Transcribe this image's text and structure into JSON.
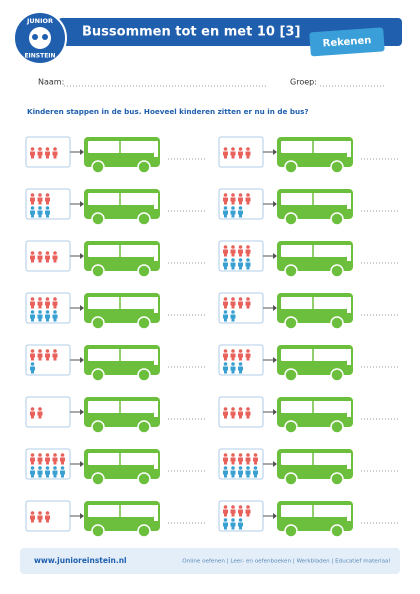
{
  "header": {
    "title": "Bussommen tot en met 10 [3]",
    "subject": "Rekenen",
    "logo_top": "JUNIOR",
    "logo_bottom": "EINSTEIN"
  },
  "fields": {
    "name": "Naam:",
    "group": "Groep:"
  },
  "instruction": "Kinderen stappen in de bus. Hoeveel kinderen zitten er nu in de bus?",
  "exercises": [
    {
      "red": 4,
      "blue": 0
    },
    {
      "red": 3,
      "blue": 3
    },
    {
      "red": 4,
      "blue": 0
    },
    {
      "red": 4,
      "blue": 4
    },
    {
      "red": 4,
      "blue": 1
    },
    {
      "red": 2,
      "blue": 0
    },
    {
      "red": 5,
      "blue": 5
    },
    {
      "red": 3,
      "blue": 0
    },
    {
      "red": 4,
      "blue": 0
    },
    {
      "red": 4,
      "blue": 3
    },
    {
      "red": 4,
      "blue": 4
    },
    {
      "red": 4,
      "blue": 2
    },
    {
      "red": 4,
      "blue": 3
    },
    {
      "red": 4,
      "blue": 0
    },
    {
      "red": 5,
      "blue": 5
    },
    {
      "red": 4,
      "blue": 3
    }
  ],
  "footer": {
    "url": "www.junioreinstein.nl",
    "links": "Online oefenen | Leer- en oefenboeken | Werkbladen | Educatief materiaal"
  }
}
